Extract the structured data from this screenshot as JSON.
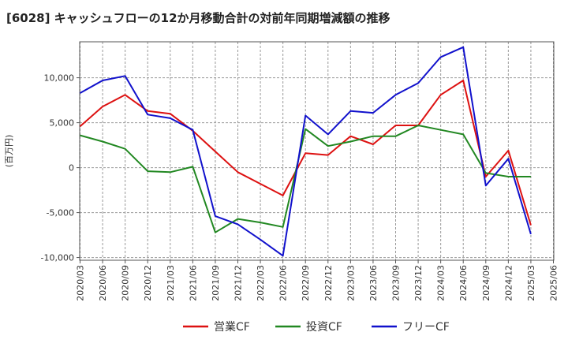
{
  "chart_data": {
    "type": "line",
    "title": "[6028]  キャッシュフローの12か月移動合計の対前年同期増減額の推移",
    "ylabel": "(百万円)",
    "xlabel": "",
    "ylim": [
      -10300,
      14000
    ],
    "yticks": [
      -10000,
      -5000,
      0,
      5000,
      10000
    ],
    "ytick_labels": [
      "-10,000",
      "-5,000",
      "0",
      "5,000",
      "10,000"
    ],
    "x": [
      "2020/03",
      "2020/06",
      "2020/09",
      "2020/12",
      "2021/03",
      "2021/06",
      "2021/09",
      "2021/12",
      "2022/03",
      "2022/06",
      "2022/09",
      "2022/12",
      "2023/03",
      "2023/06",
      "2023/09",
      "2023/12",
      "2024/03",
      "2024/06",
      "2024/09",
      "2024/12",
      "2025/03",
      "2025/06"
    ],
    "grid": true,
    "legend_position": "bottom",
    "series": [
      {
        "name": "営業CF",
        "color": "#dd1111",
        "values": [
          4600,
          6800,
          8100,
          6300,
          6000,
          4100,
          1800,
          -500,
          -1800,
          -3100,
          1600,
          1400,
          3500,
          2600,
          4700,
          4700,
          8100,
          9700,
          -1000,
          1900,
          -6400,
          null
        ]
      },
      {
        "name": "投資CF",
        "color": "#228822",
        "values": [
          3600,
          2900,
          2100,
          -400,
          -500,
          100,
          -7200,
          -5700,
          -6100,
          -6600,
          4300,
          2400,
          2900,
          3500,
          3500,
          4700,
          4200,
          3700,
          -600,
          -1000,
          -1000,
          null
        ]
      },
      {
        "name": "フリーCF",
        "color": "#1111cc",
        "values": [
          8300,
          9700,
          10200,
          5900,
          5500,
          4200,
          -5400,
          -6300,
          -8000,
          -9800,
          5800,
          3700,
          6300,
          6100,
          8100,
          9400,
          12300,
          13400,
          -2000,
          1000,
          -7400,
          null
        ]
      }
    ]
  }
}
